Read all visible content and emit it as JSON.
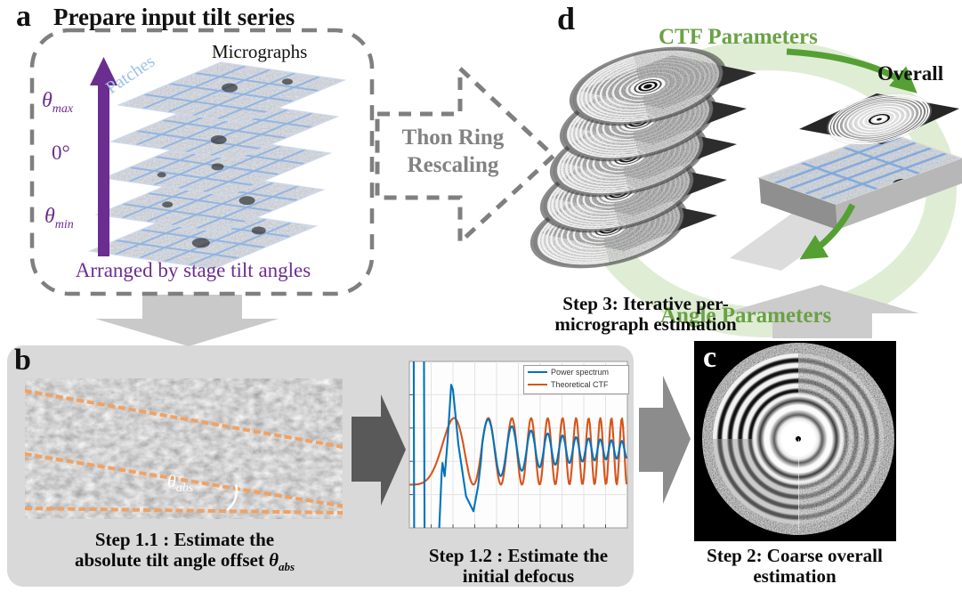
{
  "panel_a": {
    "label": "a",
    "title": "Prepare input tilt series",
    "micrographs_label": "Micrographs",
    "patches_label": "Patches",
    "theta_max_symbol": "θ",
    "theta_max_sub": "max",
    "zero_tilt_label": "0°",
    "theta_min_symbol": "θ",
    "theta_min_sub": "min",
    "arranged_label": "Arranged by stage tilt angles"
  },
  "rescaling_arrow": {
    "line1": "Thon Ring",
    "line2": "Rescaling"
  },
  "panel_b": {
    "label": "b",
    "theta_abs_symbol": "θ",
    "theta_abs_sub": "abs",
    "caption_line1": "Step 1.1 : Estimate the",
    "caption_line2_text": "absolute tilt angle offset ",
    "caption_theta_symbol": "θ",
    "caption_theta_sub": "abs"
  },
  "step12_caption": {
    "line1": "Step 1.2 : Estimate the",
    "line2": "initial defocus"
  },
  "panel_c": {
    "label": "c",
    "caption_line1": "Step 2: Coarse overall",
    "caption_line2": "estimation"
  },
  "panel_d": {
    "label": "d",
    "ctf_parameters_label": "CTF Parameters",
    "angle_parameters_label": "Angle Parameters",
    "overall_label": "Overall",
    "step3_line1": "Step 3: Iterative per-",
    "step3_line2": "micrograph estimation"
  },
  "chart_data": {
    "type": "line",
    "title": "",
    "xlabel": "",
    "ylabel": "",
    "x_range": [
      0,
      1
    ],
    "y_range": [
      0,
      1
    ],
    "grid": true,
    "legend_position": "top-right",
    "series": [
      {
        "name": "Power spectrum",
        "color": "#0072bd"
      },
      {
        "name": "Theoretical CTF",
        "color": "#d95319"
      }
    ],
    "model": {
      "phase_linear": 1.4,
      "phase_quadratic": 68,
      "theoretical_ctf": {
        "mid": 0.46,
        "amp": 0.2
      },
      "power_spectrum": {
        "mid": 0.47,
        "amp0": 0.19,
        "decay": 2.8,
        "amp_floor": 0.025,
        "ref_x": 0.294,
        "osc_start": 0.335,
        "head_segments": [
          [
            [
              0.02,
              1.06
            ],
            [
              0.022,
              -0.06
            ]
          ],
          [
            [
              0.067,
              1.06
            ],
            [
              0.07,
              -0.06
            ]
          ],
          [
            [
              0.135,
              -0.06
            ],
            [
              0.148,
              0.33
            ],
            [
              0.152,
              0.39
            ],
            [
              0.162,
              0.31
            ],
            [
              0.175,
              0.52
            ],
            [
              0.192,
              0.86
            ],
            [
              0.2,
              0.83
            ],
            [
              0.225,
              0.5
            ],
            [
              0.26,
              0.19
            ],
            [
              0.294,
              0.1
            ],
            [
              0.315,
              0.25
            ],
            [
              0.328,
              0.4
            ]
          ]
        ]
      }
    }
  },
  "colors": {
    "purple": "#6b2d90",
    "patch_blue": "#9dc3e6",
    "grid_blue": "#8fb3e3",
    "green_text": "#69a244",
    "green_arrow": "#55a033",
    "green_band": "#b5d49a",
    "gray_dashed": "#7f7f7f",
    "panel_b_bg": "#d9d9d9",
    "orange_dashed": "#f0a264",
    "arrow_light": "#c9c9c9",
    "arrow_dark": "#595959",
    "arrow_mid": "#8c8c8c"
  }
}
